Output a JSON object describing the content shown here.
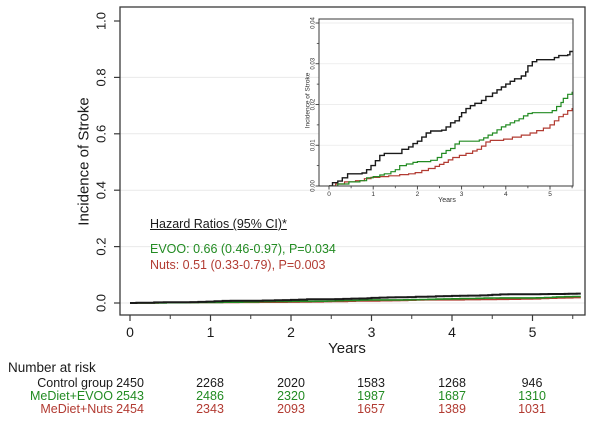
{
  "colors": {
    "control": "#1a1a1a",
    "evoo": "#228B22",
    "nuts": "#B23B32",
    "grid": "#e9e9e9",
    "axis": "#3a3a3a"
  },
  "annotations": {
    "hr_header": "Hazard Ratios (95% CI)*",
    "hr_evoo": "EVOO: 0.66 (0.46-0.97), P=0.034",
    "hr_nuts": "Nuts: 0.51 (0.33-0.79), P=0.003"
  },
  "risk_table": {
    "title": "Number at risk",
    "rows": [
      {
        "label": "Control group",
        "color": "#1a1a1a",
        "values": [
          "2450",
          "2268",
          "2020",
          "1583",
          "1268",
          "946"
        ]
      },
      {
        "label": "MeDiet+EVOO",
        "color": "#228B22",
        "values": [
          "2543",
          "2486",
          "2320",
          "1987",
          "1687",
          "1310"
        ]
      },
      {
        "label": "MeDiet+Nuts",
        "color": "#B23B32",
        "values": [
          "2454",
          "2343",
          "2093",
          "1657",
          "1389",
          "1031"
        ]
      }
    ]
  },
  "chart_data": {
    "type": "line",
    "step": true,
    "title": "",
    "xlabel": "Years",
    "ylabel": "Incidence of Stroke",
    "main_axis": {
      "xlim": [
        0,
        5.65
      ],
      "ylim": [
        0,
        1.0
      ],
      "x_ticks": [
        0,
        1,
        2,
        3,
        4,
        5
      ],
      "x_tick_labels": [
        "0",
        "1",
        "2",
        "3",
        "4",
        "5"
      ],
      "y_ticks": [
        0,
        0.2,
        0.4,
        0.6,
        0.8,
        1.0
      ],
      "y_tick_labels": [
        "0.0",
        "0.2",
        "0.4",
        "0.6",
        "0.8",
        "1.0"
      ],
      "grid": true,
      "legend": "none"
    },
    "inset_axis": {
      "xlabel": "Years",
      "ylabel": "Incidence of Stroke",
      "xlim": [
        0,
        5.6
      ],
      "ylim": [
        0,
        0.04
      ],
      "x_ticks": [
        0,
        1,
        2,
        3,
        4,
        5
      ],
      "x_tick_labels": [
        "0",
        "1",
        "2",
        "3",
        "4",
        "5"
      ],
      "y_ticks": [
        0,
        0.01,
        0.02,
        0.03,
        0.04
      ],
      "y_tick_labels": [
        "0.00",
        "0.01",
        "0.02",
        "0.03",
        "0.04"
      ],
      "grid": true
    },
    "series": [
      {
        "name": "Control",
        "color_key": "control",
        "points": [
          [
            0,
            0
          ],
          [
            0.08,
            0.0008
          ],
          [
            0.2,
            0.0012
          ],
          [
            0.3,
            0.002
          ],
          [
            0.42,
            0.003
          ],
          [
            0.75,
            0.0032
          ],
          [
            0.85,
            0.004
          ],
          [
            0.95,
            0.005
          ],
          [
            1.05,
            0.0062
          ],
          [
            1.15,
            0.0075
          ],
          [
            1.25,
            0.008
          ],
          [
            1.55,
            0.008
          ],
          [
            1.65,
            0.009
          ],
          [
            1.8,
            0.0096
          ],
          [
            1.9,
            0.0104
          ],
          [
            2.0,
            0.011
          ],
          [
            2.1,
            0.012
          ],
          [
            2.2,
            0.013
          ],
          [
            2.3,
            0.0135
          ],
          [
            2.55,
            0.0137
          ],
          [
            2.65,
            0.0145
          ],
          [
            2.75,
            0.0155
          ],
          [
            2.85,
            0.016
          ],
          [
            2.95,
            0.017
          ],
          [
            3.0,
            0.018
          ],
          [
            3.1,
            0.019
          ],
          [
            3.2,
            0.0197
          ],
          [
            3.3,
            0.0203
          ],
          [
            3.45,
            0.021
          ],
          [
            3.55,
            0.022
          ],
          [
            3.7,
            0.0228
          ],
          [
            3.8,
            0.0236
          ],
          [
            3.9,
            0.0243
          ],
          [
            4.0,
            0.025
          ],
          [
            4.1,
            0.0257
          ],
          [
            4.2,
            0.0263
          ],
          [
            4.35,
            0.027
          ],
          [
            4.45,
            0.028
          ],
          [
            4.5,
            0.0295
          ],
          [
            4.6,
            0.0305
          ],
          [
            4.7,
            0.031
          ],
          [
            5.0,
            0.031
          ],
          [
            5.1,
            0.0315
          ],
          [
            5.2,
            0.032
          ],
          [
            5.4,
            0.0322
          ],
          [
            5.45,
            0.033
          ],
          [
            5.55,
            0.0335
          ]
        ]
      },
      {
        "name": "MeDiet+EVOO",
        "color_key": "evoo",
        "points": [
          [
            0,
            0
          ],
          [
            0.2,
            0.0005
          ],
          [
            0.45,
            0.001
          ],
          [
            0.7,
            0.0013
          ],
          [
            0.85,
            0.002
          ],
          [
            1.0,
            0.0023
          ],
          [
            1.15,
            0.0027
          ],
          [
            1.25,
            0.003
          ],
          [
            1.4,
            0.0035
          ],
          [
            1.5,
            0.004
          ],
          [
            1.6,
            0.005
          ],
          [
            1.75,
            0.0054
          ],
          [
            1.9,
            0.0058
          ],
          [
            2.0,
            0.006
          ],
          [
            2.3,
            0.0063
          ],
          [
            2.45,
            0.007
          ],
          [
            2.55,
            0.008
          ],
          [
            2.65,
            0.0087
          ],
          [
            2.75,
            0.0092
          ],
          [
            2.85,
            0.0103
          ],
          [
            2.95,
            0.011
          ],
          [
            3.3,
            0.011
          ],
          [
            3.4,
            0.0113
          ],
          [
            3.5,
            0.0118
          ],
          [
            3.6,
            0.0125
          ],
          [
            3.7,
            0.013
          ],
          [
            3.8,
            0.0138
          ],
          [
            3.9,
            0.0145
          ],
          [
            4.0,
            0.015
          ],
          [
            4.1,
            0.0155
          ],
          [
            4.2,
            0.016
          ],
          [
            4.3,
            0.0165
          ],
          [
            4.4,
            0.0172
          ],
          [
            4.5,
            0.0178
          ],
          [
            4.6,
            0.018
          ],
          [
            4.95,
            0.018
          ],
          [
            5.05,
            0.0185
          ],
          [
            5.15,
            0.0195
          ],
          [
            5.25,
            0.0205
          ],
          [
            5.3,
            0.0215
          ],
          [
            5.4,
            0.0225
          ],
          [
            5.5,
            0.023
          ]
        ]
      },
      {
        "name": "MeDiet+Nuts",
        "color_key": "nuts",
        "points": [
          [
            0,
            0
          ],
          [
            0.15,
            0.0005
          ],
          [
            0.35,
            0.001
          ],
          [
            0.6,
            0.0013
          ],
          [
            0.8,
            0.0018
          ],
          [
            0.95,
            0.0021
          ],
          [
            1.15,
            0.0023
          ],
          [
            1.35,
            0.0025
          ],
          [
            1.6,
            0.0028
          ],
          [
            1.8,
            0.003
          ],
          [
            1.95,
            0.0033
          ],
          [
            2.1,
            0.0038
          ],
          [
            2.25,
            0.0043
          ],
          [
            2.4,
            0.0048
          ],
          [
            2.5,
            0.0053
          ],
          [
            2.6,
            0.0058
          ],
          [
            2.7,
            0.0064
          ],
          [
            2.8,
            0.007
          ],
          [
            2.95,
            0.0075
          ],
          [
            3.1,
            0.008
          ],
          [
            3.25,
            0.0086
          ],
          [
            3.35,
            0.009
          ],
          [
            3.45,
            0.0098
          ],
          [
            3.55,
            0.0108
          ],
          [
            3.65,
            0.0112
          ],
          [
            3.95,
            0.0115
          ],
          [
            4.15,
            0.012
          ],
          [
            4.35,
            0.0125
          ],
          [
            4.55,
            0.013
          ],
          [
            4.7,
            0.0136
          ],
          [
            4.85,
            0.0142
          ],
          [
            5.0,
            0.015
          ],
          [
            5.1,
            0.016
          ],
          [
            5.2,
            0.017
          ],
          [
            5.3,
            0.0176
          ],
          [
            5.4,
            0.0185
          ],
          [
            5.5,
            0.019
          ]
        ]
      }
    ]
  }
}
